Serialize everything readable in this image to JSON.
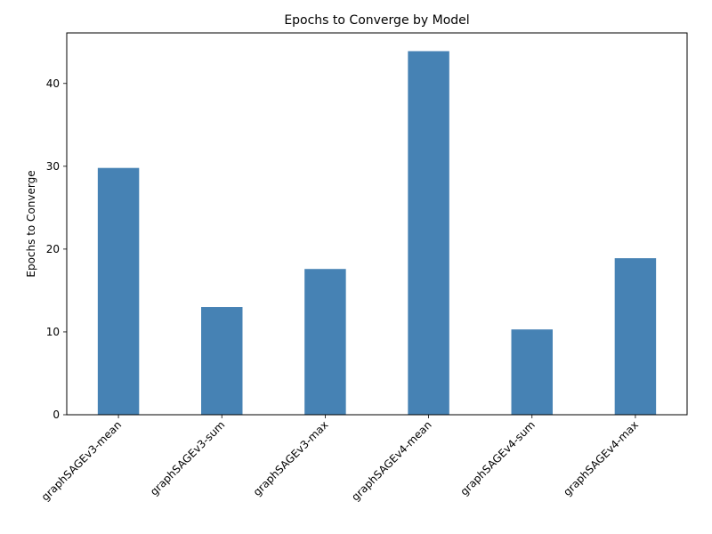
{
  "chart_data": {
    "type": "bar",
    "title": "Epochs to Converge by Model",
    "xlabel": "",
    "ylabel": "Epochs to Converge",
    "categories": [
      "graphSAGEv3-mean",
      "graphSAGEv3-sum",
      "graphSAGEv3-max",
      "graphSAGEv4-mean",
      "graphSAGEv4-sum",
      "graphSAGEv4-max"
    ],
    "values": [
      29.8,
      13.0,
      17.6,
      43.9,
      10.3,
      18.9
    ],
    "ylim": [
      0,
      46.1
    ],
    "yticks": [
      0,
      10,
      20,
      30,
      40
    ],
    "grid": false,
    "bar_color": "#4682b4"
  }
}
